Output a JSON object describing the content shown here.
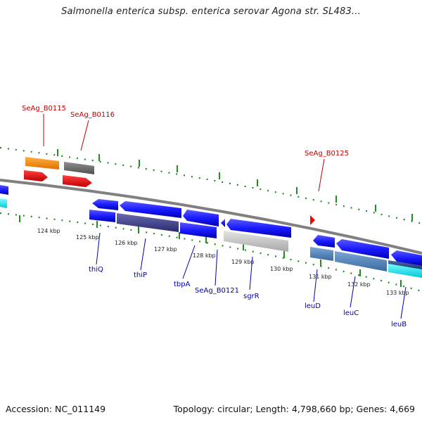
{
  "title": "Salmonella enterica subsp. enterica serovar Agona str. SL483...",
  "footer": {
    "accession": "Accession: NC_011149",
    "summary": "Topology: circular; Length: 4,798,660 bp; Genes: 4,669"
  },
  "colors": {
    "forward_gene": "#1a1aff",
    "orange_gene": "#ff8c00",
    "red_gene": "#ff0000",
    "gray_gene": "#707070",
    "backbone": "#808080",
    "tick": "#228b22",
    "label_red": "#c00000",
    "label_blue": "#0000aa"
  },
  "kbp_labels": [
    "124 kbp",
    "125 kbp",
    "126 kbp",
    "127 kbp",
    "128 kbp",
    "129 kbp",
    "130 kbp",
    "131 kbp",
    "132 kbp",
    "133 kbp"
  ],
  "gene_labels_top": [
    "SeAg_B0115",
    "SeAg_B0116",
    "SeAg_B0125"
  ],
  "gene_labels_bottom": [
    "thiQ",
    "thiP",
    "tbpA",
    "SeAg_B0121",
    "sgrR",
    "leuD",
    "leuC",
    "leuB"
  ]
}
